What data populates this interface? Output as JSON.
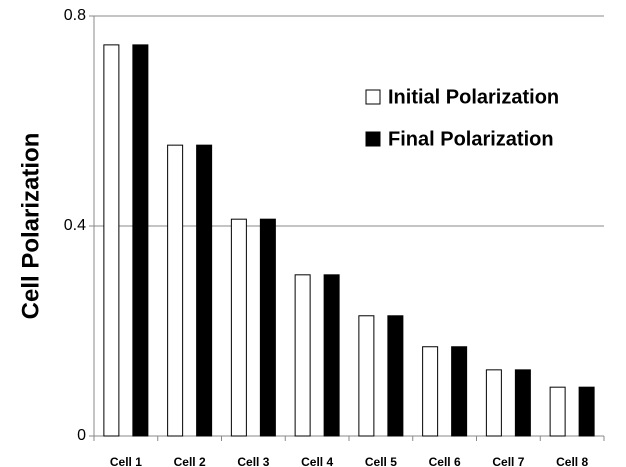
{
  "chart_data": {
    "type": "bar",
    "categories": [
      "Cell 1",
      "Cell 2",
      "Cell 3",
      "Cell 4",
      "Cell 5",
      "Cell 6",
      "Cell 7",
      "Cell 8"
    ],
    "series": [
      {
        "name": "Initial Polarization",
        "color": "#ffffff",
        "values": [
          0.745,
          0.554,
          0.413,
          0.307,
          0.229,
          0.17,
          0.126,
          0.093
        ]
      },
      {
        "name": "Final Polarization",
        "color": "#000000",
        "values": [
          0.745,
          0.554,
          0.413,
          0.307,
          0.229,
          0.17,
          0.126,
          0.093
        ]
      }
    ],
    "ylabel": "Cell Polarization",
    "ylim": [
      0,
      0.8
    ],
    "yticks": [
      0,
      0.4,
      0.8
    ],
    "grid": true,
    "legend": "upper right"
  }
}
